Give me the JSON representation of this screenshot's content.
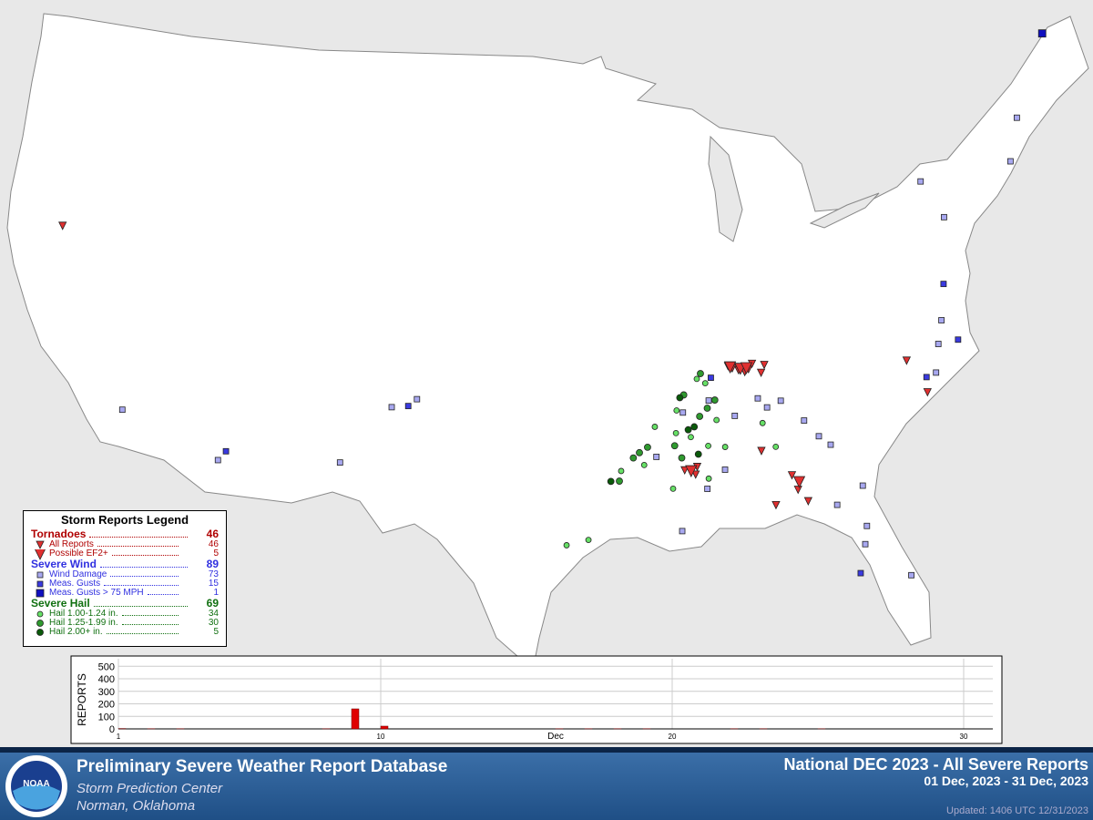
{
  "legend": {
    "title": "Storm Reports Legend",
    "groups": [
      {
        "title": "Tornadoes",
        "total": 46,
        "items": [
          {
            "label": "All Reports",
            "count": 46,
            "points": [
              [
                -87.4,
                36.6
              ],
              [
                -87.2,
                36.5
              ],
              [
                -86.9,
                36.4
              ],
              [
                -86.6,
                36.3
              ],
              [
                -86.4,
                36.4
              ],
              [
                -86.2,
                36.6
              ],
              [
                -85.6,
                36.5
              ],
              [
                -85.8,
                36.2
              ],
              [
                -89.9,
                32.6
              ],
              [
                -89.6,
                32.5
              ],
              [
                -89.3,
                32.7
              ],
              [
                -89.4,
                32.4
              ],
              [
                -86.2,
                33.1
              ],
              [
                -84.9,
                32.0
              ],
              [
                -84.7,
                31.4
              ],
              [
                -84.3,
                30.9
              ],
              [
                -85.8,
                30.9
              ],
              [
                -78.6,
                35.8
              ],
              [
                -77.9,
                34.4
              ],
              [
                -122.0,
                39.7
              ]
            ]
          },
          {
            "label": "Possible EF2+",
            "count": 5,
            "points": [
              [
                -87.3,
                36.55
              ],
              [
                -86.8,
                36.45
              ],
              [
                -86.5,
                36.45
              ],
              [
                -84.6,
                31.7
              ],
              [
                -89.6,
                32.55
              ]
            ]
          }
        ]
      },
      {
        "title": "Severe Wind",
        "total": 89,
        "items": [
          {
            "label": "Wind Damage",
            "count": 73,
            "points": [
              [
                -116.8,
                33.2
              ],
              [
                -111.9,
                32.0
              ],
              [
                -106.2,
                32.6
              ],
              [
                -104.0,
                35.0
              ],
              [
                -102.8,
                35.4
              ],
              [
                -89.8,
                34.9
              ],
              [
                -88.5,
                35.3
              ],
              [
                -85.7,
                34.8
              ],
              [
                -86.1,
                35.2
              ],
              [
                -85.0,
                35.0
              ],
              [
                -84.0,
                34.1
              ],
              [
                -83.4,
                33.4
              ],
              [
                -82.9,
                33.0
              ],
              [
                -81.7,
                31.2
              ],
              [
                -83.0,
                30.6
              ],
              [
                -81.8,
                29.6
              ],
              [
                -82.0,
                28.9
              ],
              [
                -80.2,
                27.4
              ],
              [
                -77.3,
                35.1
              ],
              [
                -76.9,
                36.2
              ],
              [
                -76.0,
                42.7
              ],
              [
                -75.2,
                41.1
              ],
              [
                -70.0,
                44.2
              ],
              [
                -71.0,
                42.6
              ],
              [
                -76.5,
                37.1
              ],
              [
                -90.2,
                30.2
              ],
              [
                -88.9,
                31.8
              ],
              [
                -87.3,
                34.6
              ],
              [
                -91.2,
                33.2
              ],
              [
                -88.0,
                32.5
              ]
            ]
          },
          {
            "label": "Meas. Gusts",
            "count": 15,
            "points": [
              [
                -111.6,
                32.4
              ],
              [
                -103.2,
                35.1
              ],
              [
                -75.9,
                36.2
              ],
              [
                -76.0,
                38.5
              ],
              [
                -77.8,
                35.0
              ],
              [
                -82.4,
                27.8
              ],
              [
                -88.3,
                36.2
              ]
            ]
          },
          {
            "label": "Meas. Gusts > 75 MPH",
            "count": 1,
            "points": [
              [
                -67.2,
                47.1
              ]
            ]
          }
        ]
      },
      {
        "title": "Severe Hail",
        "total": 69,
        "items": [
          {
            "label": "Hail 1.00-1.24 in.",
            "count": 34,
            "points": [
              [
                -95.5,
                29.8
              ],
              [
                -94.5,
                30.0
              ],
              [
                -92.9,
                32.7
              ],
              [
                -91.8,
                32.9
              ],
              [
                -90.2,
                34.1
              ],
              [
                -90.1,
                35.0
              ],
              [
                -89.5,
                33.9
              ],
              [
                -88.7,
                33.5
              ],
              [
                -88.2,
                34.5
              ],
              [
                -86.0,
                34.2
              ],
              [
                -85.5,
                33.2
              ],
              [
                -89.0,
                36.2
              ],
              [
                -88.6,
                36.0
              ],
              [
                -90.5,
                31.9
              ],
              [
                -91.2,
                34.4
              ],
              [
                -88.8,
                32.2
              ],
              [
                -87.9,
                33.4
              ]
            ]
          },
          {
            "label": "Hail 1.25-1.99 in.",
            "count": 30,
            "points": [
              [
                -92.3,
                33.2
              ],
              [
                -92.0,
                33.4
              ],
              [
                -91.6,
                33.6
              ],
              [
                -90.3,
                33.6
              ],
              [
                -90.0,
                33.1
              ],
              [
                -89.0,
                34.7
              ],
              [
                -88.6,
                35.0
              ],
              [
                -88.2,
                35.3
              ],
              [
                -89.7,
                35.6
              ],
              [
                -88.8,
                36.4
              ],
              [
                -93.0,
                32.3
              ]
            ]
          },
          {
            "label": "Hail 2.00+ in.",
            "count": 5,
            "points": [
              [
                -89.6,
                34.2
              ],
              [
                -89.3,
                34.3
              ],
              [
                -93.4,
                32.3
              ],
              [
                -89.2,
                33.2
              ],
              [
                -89.9,
                35.5
              ]
            ]
          }
        ]
      }
    ]
  },
  "chart_data": {
    "type": "bar",
    "y_label": "REPORTS",
    "x_label": "Dec",
    "color": "#e00000",
    "x": [
      1,
      2,
      3,
      4,
      5,
      6,
      7,
      8,
      9,
      10,
      11,
      12,
      13,
      14,
      15,
      16,
      17,
      18,
      19,
      20,
      21,
      22,
      23,
      24,
      25,
      26,
      27,
      28,
      29,
      30,
      31
    ],
    "values": [
      3,
      2,
      2,
      0,
      0,
      0,
      0,
      2,
      160,
      22,
      0,
      0,
      0,
      0,
      0,
      2,
      2,
      2,
      2,
      0,
      0,
      2,
      2,
      0,
      1,
      0,
      0,
      0,
      0,
      0,
      0
    ],
    "xlim": [
      1,
      31
    ],
    "xticks": [
      1,
      10,
      20,
      30
    ],
    "ylim": [
      0,
      560
    ],
    "yticks": [
      0,
      100,
      200,
      300,
      400,
      500
    ],
    "grid": true
  },
  "footer": {
    "logo_text": "NOAA",
    "title": "Preliminary Severe Weather Report Database",
    "org": "Storm Prediction Center",
    "place": "Norman, Oklahoma",
    "report_title": "National DEC 2023 - All Severe Reports",
    "period": "01 Dec, 2023 - 31 Dec, 2023",
    "updated": "Updated: 1406 UTC 12/31/2023"
  }
}
